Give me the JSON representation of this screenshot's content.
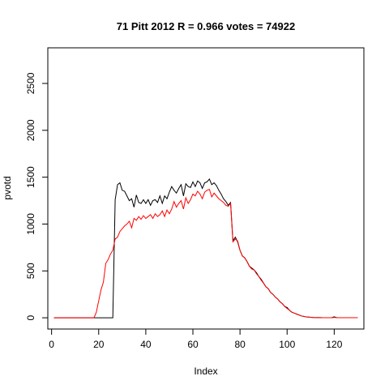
{
  "chart_data": {
    "type": "line",
    "title": "71 Pitt 2012 R = 0.966 votes = 74922",
    "xlabel": "Index",
    "ylabel": "pvotd",
    "xlim": [
      -1.6,
      132.6
    ],
    "ylim": [
      -120,
      2880
    ],
    "x_ticks": [
      0,
      20,
      40,
      60,
      80,
      100,
      120
    ],
    "y_ticks": [
      0,
      500,
      1000,
      1500,
      2000,
      2500
    ],
    "grid": false,
    "legend": "none",
    "series": [
      {
        "color": "#000000",
        "values": [
          0,
          0,
          0,
          0,
          0,
          0,
          0,
          0,
          0,
          0,
          0,
          0,
          0,
          0,
          0,
          0,
          0,
          0,
          0,
          0,
          0,
          0,
          0,
          0,
          0,
          0,
          1260,
          1420,
          1440,
          1360,
          1350,
          1300,
          1250,
          1270,
          1180,
          1310,
          1230,
          1220,
          1260,
          1220,
          1260,
          1200,
          1250,
          1260,
          1230,
          1300,
          1220,
          1300,
          1270,
          1340,
          1400,
          1360,
          1330,
          1380,
          1420,
          1300,
          1430,
          1400,
          1390,
          1450,
          1400,
          1460,
          1440,
          1380,
          1440,
          1450,
          1480,
          1420,
          1440,
          1410,
          1360,
          1320,
          1270,
          1240,
          1200,
          1230,
          820,
          860,
          810,
          720,
          660,
          640,
          600,
          550,
          530,
          510,
          480,
          440,
          410,
          370,
          330,
          310,
          270,
          250,
          220,
          200,
          170,
          150,
          120,
          110,
          80,
          60,
          50,
          40,
          30,
          20,
          15,
          10,
          8,
          5,
          3,
          2,
          2,
          2,
          1,
          1,
          1,
          1,
          2,
          10,
          2,
          1,
          1,
          1,
          1,
          1,
          1,
          1,
          1,
          1
        ]
      },
      {
        "color": "#ff0000",
        "values": [
          0,
          0,
          0,
          0,
          0,
          0,
          0,
          0,
          0,
          0,
          0,
          0,
          0,
          0,
          0,
          0,
          0,
          0,
          60,
          180,
          300,
          380,
          580,
          620,
          680,
          720,
          840,
          860,
          920,
          950,
          980,
          1000,
          1030,
          960,
          1060,
          1040,
          1080,
          1050,
          1090,
          1060,
          1080,
          1100,
          1060,
          1110,
          1080,
          1100,
          1140,
          1080,
          1150,
          1110,
          1160,
          1240,
          1180,
          1220,
          1250,
          1160,
          1280,
          1220,
          1260,
          1320,
          1300,
          1350,
          1320,
          1270,
          1340,
          1360,
          1370,
          1290,
          1330,
          1300,
          1270,
          1250,
          1230,
          1200,
          1190,
          1220,
          810,
          840,
          820,
          720,
          660,
          640,
          600,
          550,
          520,
          510,
          470,
          440,
          400,
          370,
          330,
          310,
          270,
          250,
          220,
          200,
          170,
          150,
          120,
          100,
          80,
          60,
          50,
          40,
          30,
          20,
          15,
          10,
          8,
          5,
          3,
          2,
          2,
          2,
          1,
          1,
          1,
          1,
          1,
          4,
          2,
          1,
          1,
          1,
          1,
          1,
          1,
          1,
          1,
          1
        ]
      }
    ]
  }
}
